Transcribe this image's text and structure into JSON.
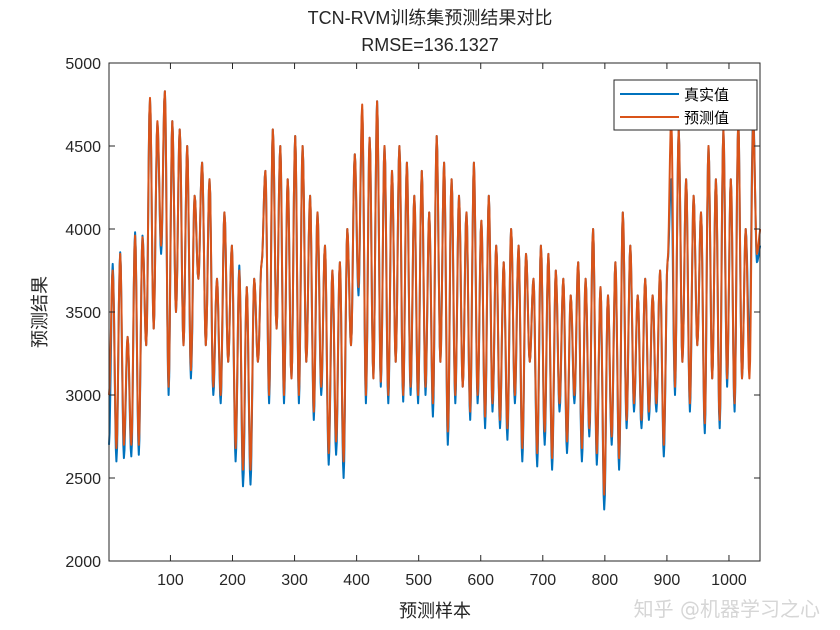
{
  "chart_data": {
    "type": "line",
    "title": "TCN-RVM训练集预测结果对比",
    "subtitle": "RMSE=136.1327",
    "xlabel": "预测样本",
    "ylabel": "预测结果",
    "xlim": [
      1,
      1050
    ],
    "ylim": [
      2000,
      5000
    ],
    "xticks": [
      100,
      200,
      300,
      400,
      500,
      600,
      700,
      800,
      900,
      1000
    ],
    "yticks": [
      2000,
      2500,
      3000,
      3500,
      4000,
      4500,
      5000
    ],
    "grid": false,
    "legend_position": "top-right",
    "x_step": 6,
    "series": [
      {
        "name": "真实值",
        "color": "#0072BD",
        "values": [
          2700,
          3790,
          2600,
          3860,
          2620,
          3350,
          2630,
          3980,
          2640,
          3960,
          3300,
          4780,
          3400,
          4640,
          3850,
          4830,
          3000,
          4650,
          3500,
          4600,
          3300,
          4500,
          3100,
          4200,
          3700,
          4400,
          3300,
          4300,
          3000,
          3700,
          2950,
          4100,
          3200,
          3900,
          2600,
          3780,
          2450,
          3650,
          2460,
          3700,
          3200,
          3800,
          4350,
          2950,
          4600,
          3400,
          4500,
          2950,
          4300,
          3100,
          4560,
          2950,
          4500,
          3200,
          4200,
          2850,
          4100,
          3000,
          3900,
          2580,
          3750,
          2640,
          3800,
          2500,
          4000,
          3300,
          4450,
          3600,
          4720,
          2950,
          4550,
          3100,
          4770,
          3050,
          4500,
          2950,
          4350,
          3200,
          4500,
          2960,
          4400,
          3000,
          4200,
          2950,
          4350,
          3000,
          4100,
          2870,
          4560,
          3200,
          4400,
          2700,
          4300,
          2950,
          4200,
          3050,
          4100,
          2850,
          4400,
          2950,
          4050,
          2800,
          4200,
          2900,
          3900,
          2800,
          3800,
          2730,
          4000,
          2950,
          3900,
          2600,
          3850,
          3200,
          3700,
          2570,
          3900,
          2700,
          3850,
          2550,
          3750,
          2900,
          3700,
          2650,
          3600,
          2950,
          3800,
          2600,
          3700,
          2750,
          4000,
          2580,
          3650,
          2310,
          3600,
          2700,
          3800,
          2550,
          4100,
          2800,
          3900,
          2900,
          3600,
          2800,
          3700,
          2850,
          3600,
          2900,
          3750,
          2630,
          3800,
          4300,
          3000,
          4600,
          3200,
          4300,
          2900,
          4200,
          3300,
          4100,
          2770,
          4500,
          3100,
          4300,
          2800,
          4600,
          3050,
          4300,
          2900,
          4650,
          3100,
          4000,
          3300,
          4700,
          3800,
          3900
        ]
      },
      {
        "name": "预测值",
        "color": "#D95319",
        "values": [
          3000,
          3750,
          2680,
          3850,
          2700,
          3350,
          2700,
          3960,
          2700,
          3950,
          3300,
          4790,
          3400,
          4650,
          3900,
          4830,
          3050,
          4650,
          3500,
          4600,
          3300,
          4500,
          3150,
          4200,
          3700,
          4400,
          3300,
          4300,
          3050,
          3700,
          3000,
          4100,
          3200,
          3900,
          2680,
          3750,
          2550,
          3650,
          2550,
          3700,
          3200,
          3800,
          4350,
          3000,
          4600,
          3400,
          4500,
          3000,
          4300,
          3100,
          4560,
          3000,
          4500,
          3200,
          4200,
          2900,
          4100,
          3050,
          3900,
          2650,
          3750,
          2720,
          3800,
          2600,
          4000,
          3300,
          4450,
          3650,
          4750,
          3000,
          4550,
          3100,
          4770,
          3080,
          4500,
          3000,
          4350,
          3200,
          4500,
          3000,
          4400,
          3050,
          4200,
          3000,
          4350,
          3050,
          4100,
          2950,
          4560,
          3200,
          4400,
          2780,
          4300,
          3000,
          4200,
          3050,
          4100,
          2900,
          4400,
          3000,
          4050,
          2870,
          4200,
          2950,
          3900,
          2850,
          3800,
          2800,
          4000,
          3000,
          3900,
          2680,
          3850,
          3200,
          3700,
          2650,
          3900,
          2780,
          3850,
          2620,
          3750,
          2950,
          3700,
          2720,
          3600,
          3000,
          3800,
          2680,
          3700,
          2800,
          4000,
          2650,
          3650,
          2400,
          3600,
          2750,
          3800,
          2620,
          4100,
          2850,
          3900,
          2950,
          3600,
          2850,
          3700,
          2900,
          3600,
          2950,
          3750,
          2700,
          3800,
          4650,
          3050,
          4600,
          3200,
          4300,
          2950,
          4200,
          3300,
          4100,
          2830,
          4500,
          3100,
          4300,
          2850,
          4600,
          3100,
          4300,
          2950,
          4650,
          3100,
          4000,
          3100,
          4650,
          3850,
          4000
        ]
      }
    ]
  },
  "watermark": "知乎 @机器学习之心"
}
